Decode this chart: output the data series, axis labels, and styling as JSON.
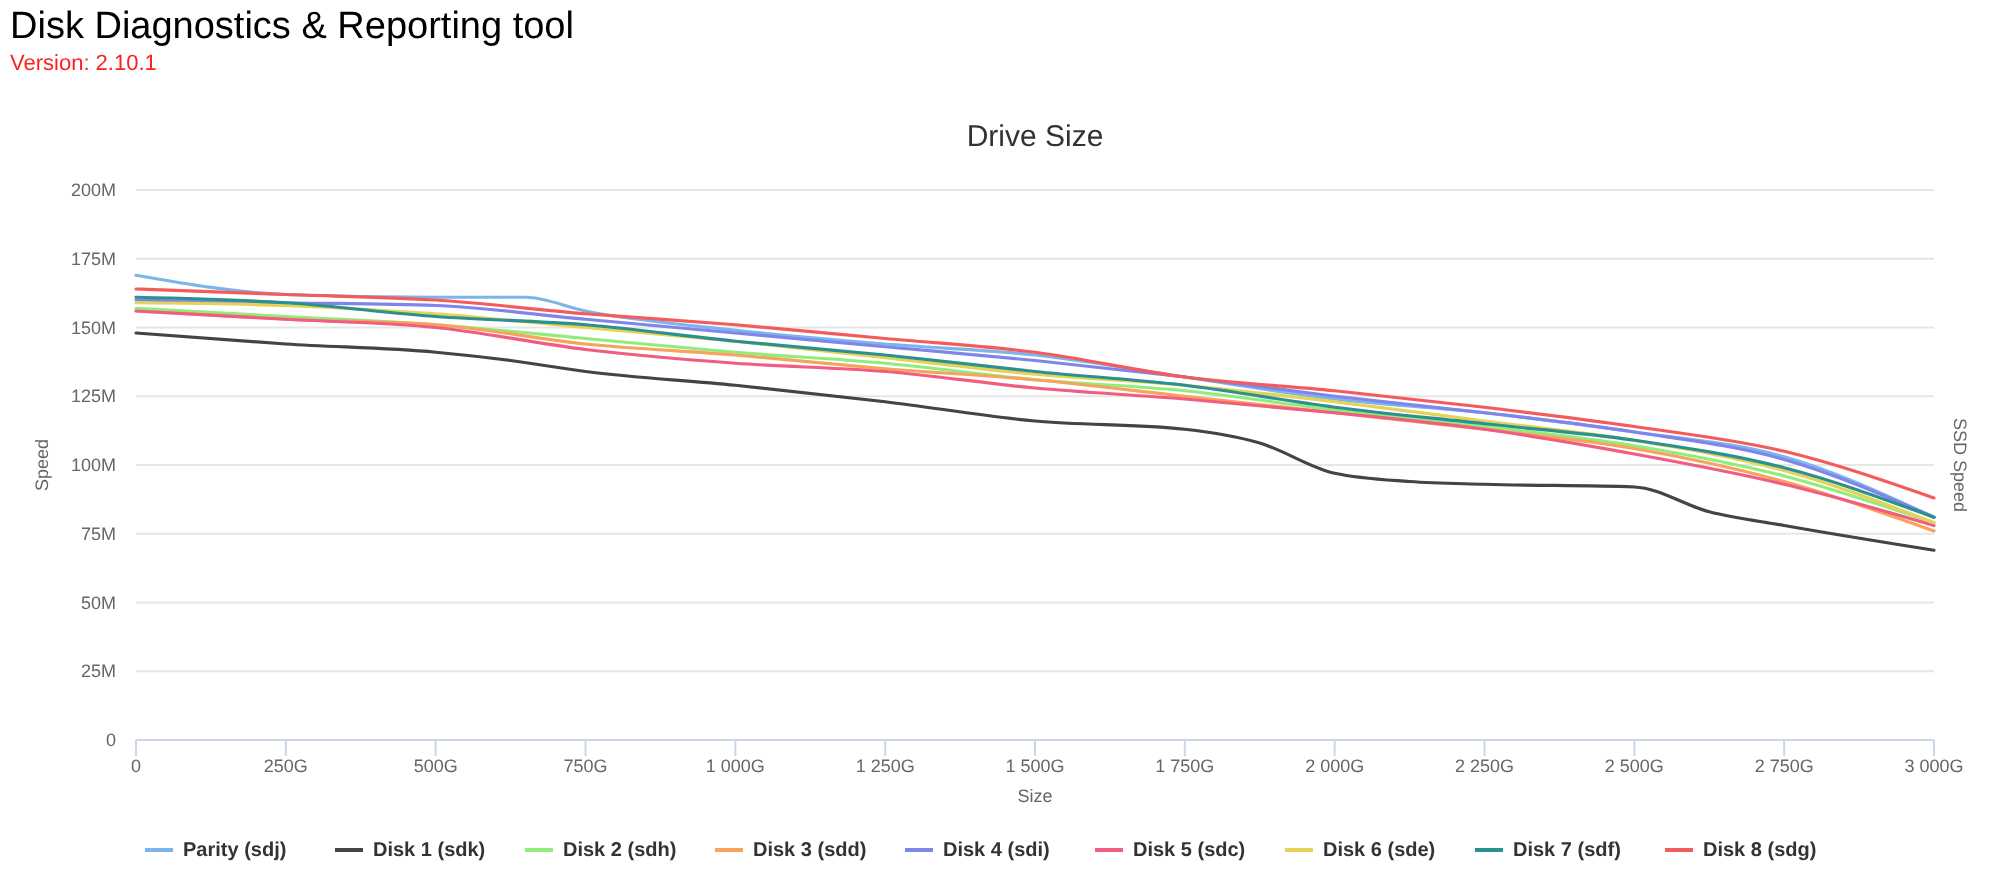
{
  "chart_data": {
    "type": "line",
    "title": "Drive Size",
    "annotations": [
      "Disk Diagnostics & Reporting tool",
      "Version: 2.10.1"
    ],
    "xlabel": "Size",
    "ylabel": "Speed",
    "y2label": "SSD Speed",
    "x": [
      0,
      250,
      500,
      750,
      1000,
      1250,
      1500,
      1750,
      2000,
      2250,
      2500,
      2750,
      3000
    ],
    "xlim": [
      0,
      3000
    ],
    "xticks": [
      0,
      {
        "value": 250,
        "label": "250G"
      },
      {
        "value": 500,
        "label": "500G"
      },
      {
        "value": 750,
        "label": "750G"
      },
      {
        "value": 1000,
        "label": "1 000G"
      },
      {
        "value": 1250,
        "label": "1 250G"
      },
      {
        "value": 1500,
        "label": "1 500G"
      },
      {
        "value": 1750,
        "label": "1 750G"
      },
      {
        "value": 2000,
        "label": "2 000G"
      },
      {
        "value": 2250,
        "label": "2 250G"
      },
      {
        "value": 2500,
        "label": "2 500G"
      },
      {
        "value": 2750,
        "label": "2 750G"
      },
      {
        "value": 3000,
        "label": "3 000G"
      }
    ],
    "ylim": [
      0,
      200
    ],
    "yticks": [
      0,
      {
        "value": 25,
        "label": "25M"
      },
      {
        "value": 50,
        "label": "50M"
      },
      {
        "value": 75,
        "label": "75M"
      },
      {
        "value": 100,
        "label": "100M"
      },
      {
        "value": 125,
        "label": "125M"
      },
      {
        "value": 150,
        "label": "150M"
      },
      {
        "value": 175,
        "label": "175M"
      },
      {
        "value": 200,
        "label": "200M"
      }
    ],
    "grid": "y",
    "legend": "bottom",
    "marker": "none",
    "line_style": "solid",
    "series": [
      {
        "name": "Parity (sdj)",
        "color": "#7cb5ec",
        "x": [
          0,
          250,
          500,
          650,
          750,
          1000,
          1250,
          1500,
          1750,
          2000,
          2250,
          2500,
          2750,
          3000
        ],
        "values": [
          169,
          162,
          161,
          161,
          156,
          149,
          144,
          140,
          132,
          124,
          119,
          112,
          103,
          81
        ]
      },
      {
        "name": "Disk 1 (sdk)",
        "color": "#434348",
        "x": [
          0,
          250,
          500,
          625,
          750,
          1000,
          1250,
          1500,
          1750,
          1875,
          2000,
          2125,
          2250,
          2500,
          2625,
          2750,
          3000
        ],
        "values": [
          148,
          144,
          141,
          138,
          134,
          129,
          123,
          116,
          113,
          108,
          97,
          94,
          93,
          92,
          83,
          78,
          69
        ]
      },
      {
        "name": "Disk 2 (sdh)",
        "color": "#90ed7d",
        "values": [
          157,
          154,
          151,
          146,
          141,
          137,
          131,
          127,
          120,
          114,
          107,
          96,
          79
        ]
      },
      {
        "name": "Disk 3 (sdd)",
        "color": "#f7a35c",
        "values": [
          156,
          153,
          151,
          144,
          140,
          135,
          131,
          125,
          119,
          113,
          106,
          94,
          76
        ]
      },
      {
        "name": "Disk 4 (sdi)",
        "color": "#8085e9",
        "values": [
          160,
          159,
          158,
          153,
          148,
          143,
          138,
          132,
          125,
          119,
          112,
          102,
          81
        ]
      },
      {
        "name": "Disk 5 (sdc)",
        "color": "#f15c80",
        "values": [
          156,
          153,
          150,
          142,
          137,
          134,
          128,
          124,
          119,
          113,
          104,
          93,
          78
        ]
      },
      {
        "name": "Disk 6 (sde)",
        "color": "#e4d354",
        "values": [
          159,
          158,
          155,
          150,
          145,
          139,
          133,
          129,
          123,
          116,
          109,
          98,
          79
        ]
      },
      {
        "name": "Disk 7 (sdf)",
        "color": "#2b908f",
        "values": [
          161,
          159,
          154,
          151,
          145,
          140,
          134,
          129,
          121,
          115,
          109,
          99,
          81
        ]
      },
      {
        "name": "Disk 8 (sdg)",
        "color": "#f45b5b",
        "values": [
          164,
          162,
          160,
          155,
          151,
          146,
          141,
          132,
          127,
          121,
          114,
          105,
          88
        ]
      }
    ]
  }
}
